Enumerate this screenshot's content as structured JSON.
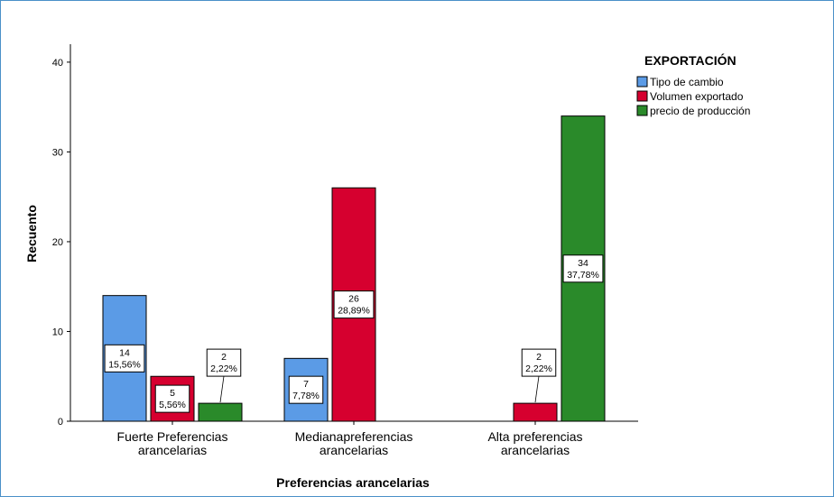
{
  "chart_data": {
    "type": "bar",
    "title": "",
    "xlabel": "Preferencias arancelarias",
    "ylabel": "Recuento",
    "ylim": [
      0,
      42
    ],
    "yticks": [
      0,
      10,
      20,
      30,
      40
    ],
    "grid": false,
    "legend_position": "top-right",
    "legend_title": "EXPORTACIÓN",
    "categories": [
      [
        "Fuerte Preferencias",
        "arancelarias"
      ],
      [
        "Medianapreferencias",
        "arancelarias"
      ],
      [
        "Alta preferencias",
        "arancelarias"
      ]
    ],
    "series": [
      {
        "name": "Tipo de cambio",
        "color": "#5b9be6",
        "values": [
          14,
          7,
          0
        ],
        "labels": [
          [
            "14",
            "15,56%"
          ],
          [
            "7",
            "7,78%"
          ],
          null
        ]
      },
      {
        "name": "Volumen exportado",
        "color": "#d6002f",
        "values": [
          5,
          26,
          2
        ],
        "labels": [
          [
            "5",
            "5,56%"
          ],
          [
            "26",
            "28,89%"
          ],
          [
            "2",
            "2,22%"
          ]
        ]
      },
      {
        "name": "precio de producción",
        "color": "#2a8a2a",
        "values": [
          2,
          0,
          34
        ],
        "labels": [
          [
            "2",
            "2,22%"
          ],
          null,
          [
            "34",
            "37,78%"
          ]
        ]
      }
    ]
  }
}
